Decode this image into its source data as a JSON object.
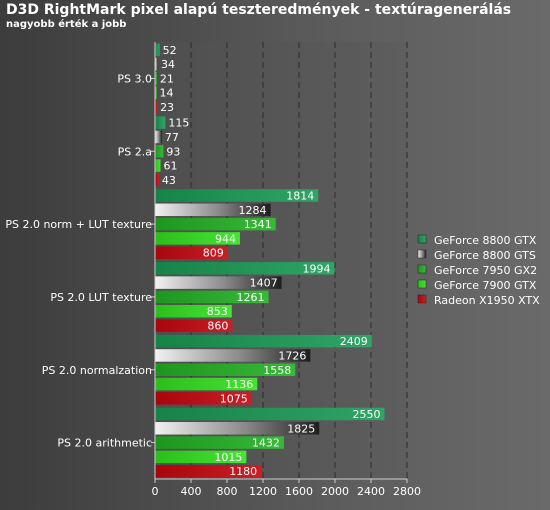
{
  "chart_data": {
    "type": "bar",
    "orientation": "horizontal",
    "title": "D3D RightMark pixel alapú teszteredmények - textúragenerálás",
    "subtitle": "nagyobb érték a jobb",
    "xlabel": "",
    "ylabel": "",
    "xlim": [
      0,
      2800
    ],
    "ticks": [
      0,
      400,
      800,
      1200,
      1600,
      2000,
      2400,
      2800
    ],
    "grid": true,
    "legend_position": "right",
    "categories": [
      "PS 3.0",
      "PS 2.a",
      "PS 2.0 norm + LUT texture",
      "PS 2.0 LUT texture",
      "PS 2.0 normalzation",
      "PS 2.0 arithmetic"
    ],
    "series": [
      {
        "name": "GeForce 8800 GTX",
        "color": "#1a9a55",
        "values": [
          52,
          115,
          1814,
          1994,
          2409,
          2550
        ]
      },
      {
        "name": "GeForce 8800 GTS",
        "color": "#2a2a2a",
        "values": [
          34,
          77,
          1284,
          1407,
          1726,
          1825
        ]
      },
      {
        "name": "GeForce 7950 GX2",
        "color": "#22b122",
        "values": [
          21,
          93,
          1341,
          1261,
          1558,
          1432
        ]
      },
      {
        "name": "GeForce 7900 GTX",
        "color": "#33e01e",
        "values": [
          14,
          61,
          944,
          853,
          1136,
          1015
        ]
      },
      {
        "name": "Radeon X1950 XTX",
        "color": "#c4060e",
        "values": [
          23,
          43,
          809,
          860,
          1075,
          1180
        ]
      }
    ]
  }
}
